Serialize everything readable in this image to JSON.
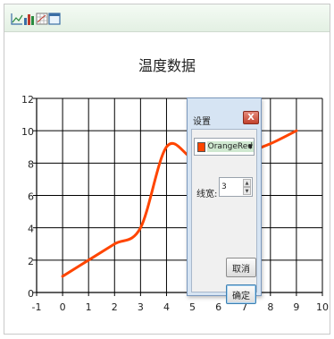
{
  "toolbar": {
    "buttons": [
      {
        "icon": "line-chart-icon"
      },
      {
        "icon": "bar-chart-icon"
      },
      {
        "icon": "grid-chart-icon"
      },
      {
        "icon": "settings-window-icon"
      }
    ]
  },
  "chart_data": {
    "type": "line",
    "title": "温度数据",
    "xlabel": "",
    "ylabel": "",
    "x": [
      0,
      1,
      2,
      3,
      4,
      5,
      6,
      7,
      8,
      9
    ],
    "series": [
      {
        "color": "#ff4500",
        "values": [
          1,
          2,
          3,
          4,
          9,
          8.3,
          8.0,
          8.6,
          9.2,
          10
        ]
      }
    ],
    "xlim": [
      -1,
      10
    ],
    "ylim": [
      0,
      12
    ],
    "x_ticks": [
      "-1",
      "0",
      "1",
      "2",
      "3",
      "4",
      "5",
      "6",
      "7",
      "8",
      "9",
      "10"
    ],
    "y_ticks": [
      "0",
      "2",
      "4",
      "6",
      "8",
      "10",
      "12"
    ],
    "grid": true,
    "line_width": 3
  },
  "dialog": {
    "title": "设置",
    "close_label": "X",
    "color_name": "OrangeRed",
    "color_hex": "#ff4500",
    "width_label": "线宽:",
    "width_value": "3",
    "cancel_label": "取消",
    "ok_label": "确定"
  }
}
